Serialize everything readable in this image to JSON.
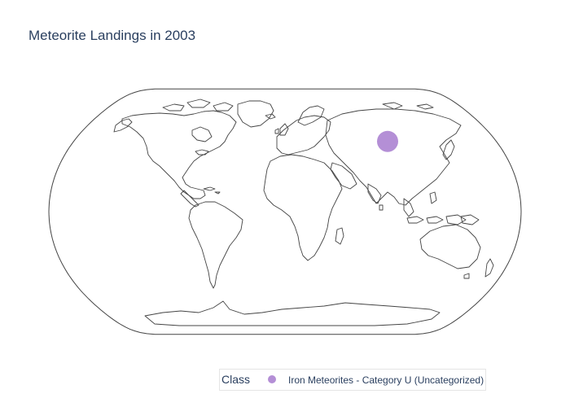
{
  "title": "Meteorite Landings in 2003",
  "legend": {
    "title": "Class",
    "position": "bottom-center"
  },
  "colors": {
    "marker": "#b48fd6",
    "coastline": "#444444",
    "frame": "#444444",
    "title_text": "#2a3f5f"
  },
  "chart_data": {
    "type": "scatter",
    "projection": "natural-earth",
    "series": [
      {
        "name": "Iron Meteorites - Category U (Uncategorized)",
        "points": [
          {
            "lon": 87.4,
            "lat": 46.2
          }
        ]
      }
    ]
  }
}
